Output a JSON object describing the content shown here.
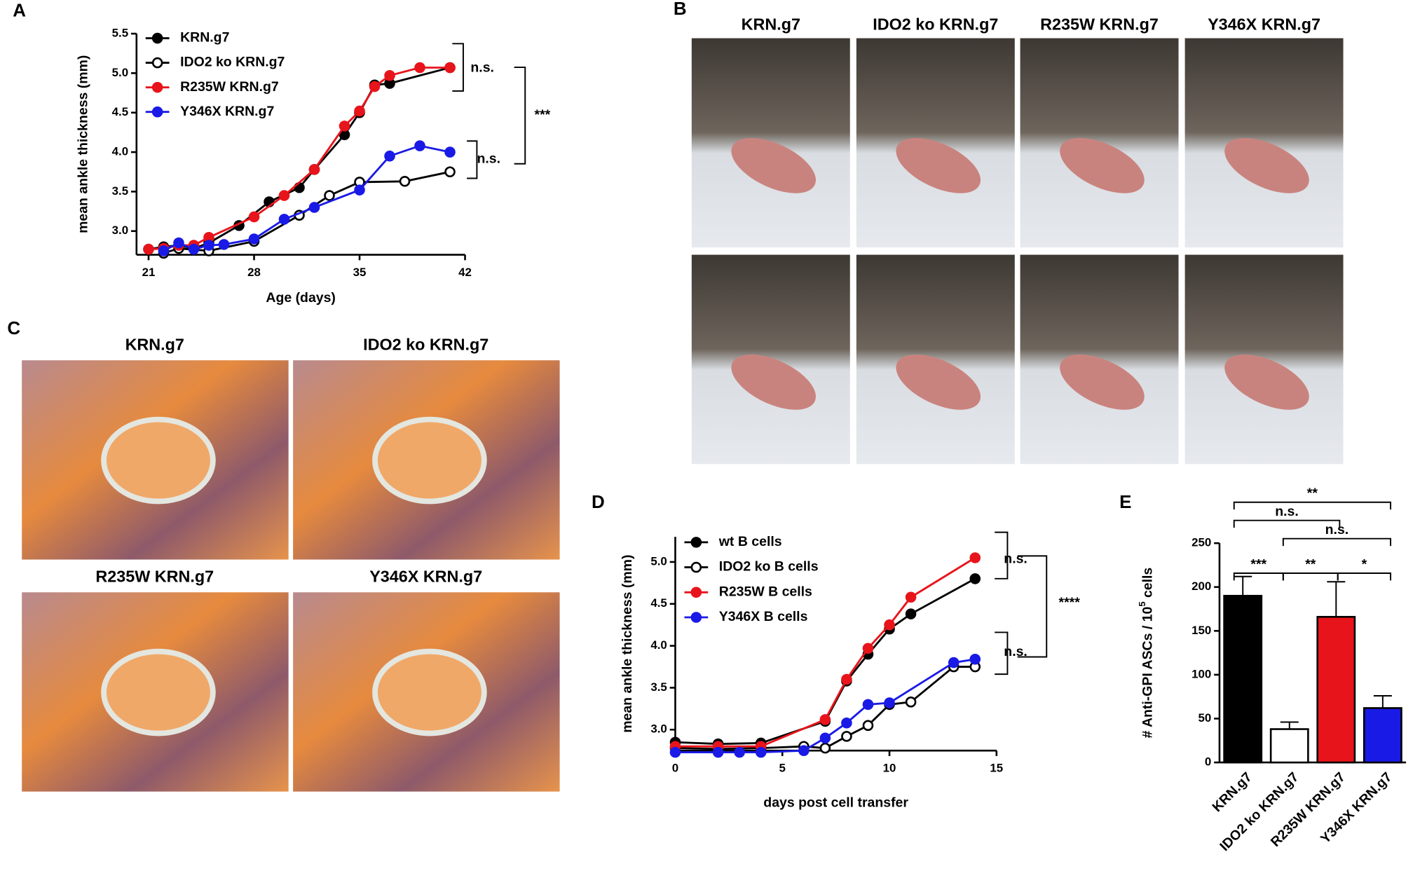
{
  "panel_labels": [
    "A",
    "B",
    "C",
    "D",
    "E"
  ],
  "photos": {
    "labels": [
      "KRN.g7",
      "IDO2 ko KRN.g7",
      "R235W KRN.g7",
      "Y346X KRN.g7"
    ]
  },
  "histology": {
    "labels": [
      "KRN.g7",
      "IDO2 ko KRN.g7",
      "R235W KRN.g7",
      "Y346X KRN.g7"
    ]
  },
  "chart_data": [
    {
      "type": "line",
      "xlabel": "Age (days)",
      "ylabel": "mean ankle thickness (mm)",
      "xlim": [
        20.2,
        42
      ],
      "xticks": [
        21,
        28,
        35,
        42
      ],
      "ylim": [
        2.7,
        5.5
      ],
      "yticks": [
        {
          "value": 3,
          "label": "3.0"
        },
        3.5,
        {
          "value": 4,
          "label": "4.0"
        },
        4.5,
        {
          "value": 5,
          "label": "5.0"
        },
        5.5
      ],
      "series": [
        {
          "name": "KRN.g7",
          "color": "#000000",
          "fill": "#000000",
          "x": [
            21,
            22,
            23,
            24,
            25,
            27,
            29,
            31,
            32,
            34,
            35,
            36,
            37,
            41
          ],
          "values": [
            2.77,
            2.8,
            2.82,
            2.78,
            2.85,
            3.07,
            3.37,
            3.55,
            3.78,
            4.22,
            4.5,
            4.85,
            4.87,
            5.07
          ]
        },
        {
          "name": "IDO2 ko KRN.g7",
          "color": "#000000",
          "fill": "#ffffff",
          "x": [
            22,
            23,
            25,
            28,
            31,
            33,
            35,
            38,
            41
          ],
          "values": [
            2.72,
            2.78,
            2.75,
            2.87,
            3.2,
            3.45,
            3.62,
            3.63,
            3.75
          ]
        },
        {
          "name": "R235W KRN.g7",
          "color": "#e8141b",
          "fill": "#e8141b",
          "x": [
            21,
            22,
            23,
            24,
            25,
            28,
            30,
            32,
            34,
            35,
            36,
            37,
            39,
            41
          ],
          "values": [
            2.77,
            2.78,
            2.82,
            2.82,
            2.92,
            3.18,
            3.45,
            3.78,
            4.33,
            4.52,
            4.83,
            4.97,
            5.07,
            5.07
          ]
        },
        {
          "name": "Y346X KRN.g7",
          "color": "#1a1ae6",
          "fill": "#1a1ae6",
          "x": [
            22,
            23,
            24,
            25,
            26,
            28,
            30,
            32,
            35,
            37,
            39,
            41
          ],
          "values": [
            2.75,
            2.85,
            2.77,
            2.82,
            2.83,
            2.9,
            3.15,
            3.3,
            3.52,
            3.95,
            4.08,
            4.0
          ]
        }
      ],
      "annotations": [
        "n.s.",
        "n.s.",
        "***"
      ]
    },
    {
      "type": "line",
      "xlabel": "days post cell transfer",
      "ylabel": "mean ankle thickness (mm)",
      "xlim": [
        0,
        15
      ],
      "xticks": [
        0,
        5,
        10,
        15
      ],
      "ylim": [
        2.75,
        5.3
      ],
      "yticks": [
        {
          "value": 3,
          "label": "3.0"
        },
        3.5,
        {
          "value": 4,
          "label": "4.0"
        },
        4.5,
        {
          "value": 5,
          "label": "5.0"
        }
      ],
      "series": [
        {
          "name": "wt B cells",
          "color": "#000000",
          "fill": "#000000",
          "x": [
            0,
            2,
            4,
            7,
            8,
            9,
            10,
            11,
            14
          ],
          "values": [
            2.85,
            2.83,
            2.84,
            3.1,
            3.58,
            3.9,
            4.2,
            4.38,
            4.8
          ]
        },
        {
          "name": "IDO2 ko B cells",
          "color": "#000000",
          "fill": "#ffffff",
          "x": [
            0,
            2,
            4,
            6,
            7,
            8,
            9,
            10,
            11,
            13,
            14
          ],
          "values": [
            2.78,
            2.77,
            2.78,
            2.8,
            2.78,
            2.92,
            3.05,
            3.3,
            3.33,
            3.75,
            3.75
          ]
        },
        {
          "name": "R235W B cells",
          "color": "#e8141b",
          "fill": "#e8141b",
          "x": [
            0,
            2,
            4,
            7,
            8,
            9,
            10,
            11,
            14
          ],
          "values": [
            2.8,
            2.8,
            2.8,
            3.12,
            3.6,
            3.97,
            4.25,
            4.58,
            5.05
          ]
        },
        {
          "name": "Y346X B cells",
          "color": "#1a1ae6",
          "fill": "#1a1ae6",
          "x": [
            0,
            2,
            3,
            4,
            6,
            7,
            8,
            9,
            10,
            13,
            14
          ],
          "values": [
            2.73,
            2.73,
            2.73,
            2.73,
            2.75,
            2.9,
            3.08,
            3.3,
            3.32,
            3.8,
            3.84
          ]
        }
      ],
      "annotations": [
        "n.s.",
        "n.s.",
        "****"
      ]
    },
    {
      "type": "bar",
      "ylabel": "# Anti-GPI ASCs / 10",
      "ylabel_exponent": "5",
      "ylabel_tail": " cells",
      "categories": [
        "KRN.g7",
        "IDO2 ko KRN.g7",
        "R235W KRN.g7",
        "Y346X KRN.g7"
      ],
      "values": [
        190,
        38,
        166,
        62
      ],
      "errors": [
        22,
        8,
        40,
        14
      ],
      "colors": [
        "#000000",
        "#ffffff",
        "#e8141b",
        "#1a1ae6"
      ],
      "ylim": [
        0,
        250
      ],
      "yticks": [
        0,
        50,
        100,
        150,
        200,
        250
      ],
      "annotations": [
        "**",
        "n.s.",
        "n.s.",
        "***",
        "**",
        "*"
      ]
    }
  ]
}
